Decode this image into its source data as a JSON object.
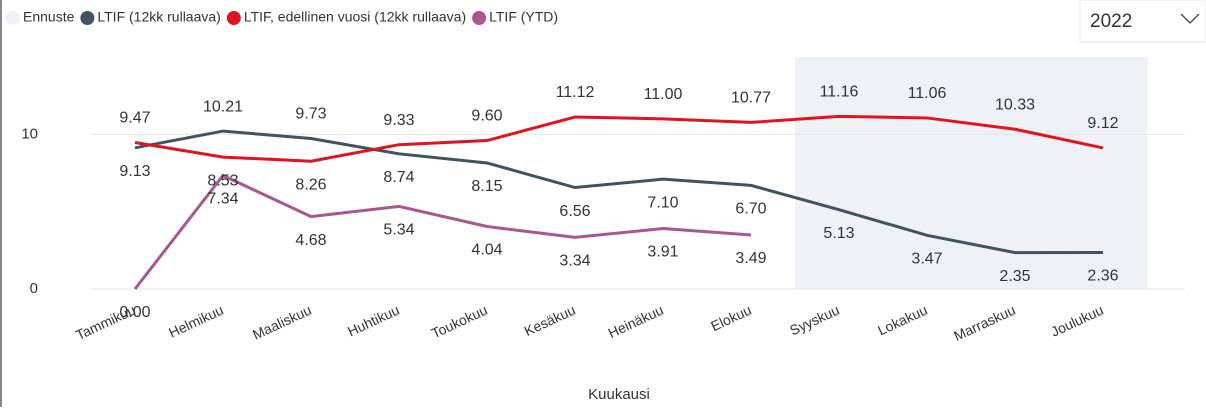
{
  "chart_data": {
    "type": "line",
    "categories": [
      "Tammikuu",
      "Helmikuu",
      "Maaliskuu",
      "Huhtikuu",
      "Toukokuu",
      "Kesäkuu",
      "Heinäkuu",
      "Elokuu",
      "Syyskuu",
      "Lokakuu",
      "Marraskuu",
      "Joulukuu"
    ],
    "series": [
      {
        "name": "Ennuste",
        "color": "#eef1f5",
        "kind": "band",
        "values": [
          null,
          null,
          null,
          null,
          null,
          null,
          null,
          null,
          15,
          15,
          15,
          15
        ]
      },
      {
        "name": "LTIF (12kk rullaava)",
        "color": "#41535d",
        "values": [
          9.13,
          10.21,
          9.73,
          8.74,
          8.15,
          6.56,
          7.1,
          6.7,
          5.13,
          3.47,
          2.35,
          2.36
        ],
        "value_labels": [
          "9.13",
          "10.21",
          "9.73",
          "8.74",
          "8.15",
          "6.56",
          "7.10",
          "6.70",
          "5.13",
          "3.47",
          "2.35",
          "2.36"
        ]
      },
      {
        "name": "LTIF, edellinen vuosi (12kk rullaava)",
        "color": "#e0141e",
        "values": [
          9.47,
          8.53,
          8.26,
          9.33,
          9.6,
          11.12,
          11.0,
          10.77,
          11.16,
          11.06,
          10.33,
          9.12
        ],
        "value_labels": [
          "9.47",
          "8.53",
          "8.26",
          "9.33",
          "9.60",
          "11.12",
          "11.00",
          "10.77",
          "11.16",
          "11.06",
          "10.33",
          "9.12"
        ]
      },
      {
        "name": "LTIF (YTD)",
        "color": "#a8578f",
        "values": [
          0.0,
          7.34,
          4.68,
          5.34,
          4.04,
          3.34,
          3.91,
          3.49,
          null,
          null,
          null,
          null
        ],
        "value_labels": [
          "0.00",
          "7.34",
          "4.68",
          "5.34",
          "4.04",
          "3.34",
          "3.91",
          "3.49",
          null,
          null,
          null,
          null
        ]
      }
    ],
    "xlabel": "Kuukausi",
    "ylim": [
      0,
      15
    ],
    "yticks": [
      0,
      10
    ],
    "grid": true
  },
  "slicer": {
    "value": "2022"
  }
}
